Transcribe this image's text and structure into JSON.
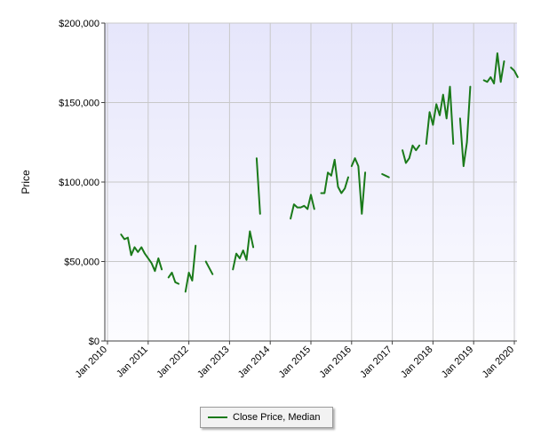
{
  "chart_data": {
    "type": "line",
    "ylabel": "Price",
    "xlabel": "",
    "ylim": [
      0,
      200000
    ],
    "xlim": [
      "2010-01",
      "2020-01"
    ],
    "y_ticks": [
      "$0",
      "$50,000",
      "$100,000",
      "$150,000",
      "$200,000"
    ],
    "y_tick_values": [
      0,
      50000,
      100000,
      150000,
      200000
    ],
    "x_ticks": [
      "Jan 2010",
      "Jan 2011",
      "Jan 2012",
      "Jan 2013",
      "Jan 2014",
      "Jan 2015",
      "Jan 2016",
      "Jan 2017",
      "Jan 2018",
      "Jan 2019",
      "Jan 2020"
    ],
    "x_tick_values": [
      "2010-01",
      "2011-01",
      "2012-01",
      "2013-01",
      "2014-01",
      "2015-01",
      "2016-01",
      "2017-01",
      "2018-01",
      "2019-01",
      "2020-01"
    ],
    "grid": true,
    "legend_position": "bottom",
    "series": [
      {
        "name": "Close Price, Median",
        "color": "#1a7a1a",
        "segments": [
          [
            [
              "2010-05",
              67000
            ],
            [
              "2010-06",
              64000
            ],
            [
              "2010-07",
              65000
            ],
            [
              "2010-08",
              54000
            ],
            [
              "2010-09",
              59000
            ],
            [
              "2010-10",
              56000
            ],
            [
              "2010-11",
              59000
            ],
            [
              "2010-12",
              55000
            ],
            [
              "2011-01",
              52000
            ],
            [
              "2011-02",
              49000
            ],
            [
              "2011-03",
              44000
            ],
            [
              "2011-04",
              52000
            ],
            [
              "2011-05",
              45000
            ]
          ],
          [
            [
              "2011-07",
              40000
            ],
            [
              "2011-08",
              43000
            ],
            [
              "2011-09",
              37000
            ],
            [
              "2011-10",
              36000
            ]
          ],
          [
            [
              "2011-12",
              31000
            ],
            [
              "2012-01",
              43000
            ],
            [
              "2012-02",
              38000
            ],
            [
              "2012-03",
              60000
            ]
          ],
          [
            [
              "2012-06",
              50000
            ],
            [
              "2012-07",
              46000
            ],
            [
              "2012-08",
              42000
            ]
          ],
          [
            [
              "2013-02",
              45000
            ],
            [
              "2013-03",
              55000
            ],
            [
              "2013-04",
              52000
            ],
            [
              "2013-05",
              57000
            ],
            [
              "2013-06",
              51000
            ],
            [
              "2013-07",
              69000
            ],
            [
              "2013-08",
              59000
            ]
          ],
          [
            [
              "2013-09",
              115000
            ],
            [
              "2013-10",
              80000
            ]
          ],
          [
            [
              "2014-07",
              77000
            ],
            [
              "2014-08",
              86000
            ],
            [
              "2014-09",
              84000
            ],
            [
              "2014-10",
              84000
            ],
            [
              "2014-11",
              85000
            ],
            [
              "2014-12",
              83000
            ],
            [
              "2015-01",
              92000
            ],
            [
              "2015-02",
              83000
            ]
          ],
          [
            [
              "2015-04",
              93000
            ],
            [
              "2015-05",
              93000
            ],
            [
              "2015-06",
              106000
            ],
            [
              "2015-07",
              104000
            ],
            [
              "2015-08",
              114000
            ],
            [
              "2015-09",
              97000
            ],
            [
              "2015-10",
              93000
            ],
            [
              "2015-11",
              96000
            ],
            [
              "2015-12",
              103000
            ]
          ],
          [
            [
              "2016-01",
              110000
            ],
            [
              "2016-02",
              115000
            ],
            [
              "2016-03",
              110000
            ],
            [
              "2016-04",
              80000
            ],
            [
              "2016-05",
              106000
            ]
          ],
          [
            [
              "2016-10",
              105000
            ],
            [
              "2016-11",
              104000
            ],
            [
              "2016-12",
              103000
            ]
          ],
          [
            [
              "2017-04",
              120000
            ],
            [
              "2017-05",
              112000
            ],
            [
              "2017-06",
              115000
            ],
            [
              "2017-07",
              123000
            ],
            [
              "2017-08",
              120000
            ],
            [
              "2017-09",
              123000
            ]
          ],
          [
            [
              "2017-11",
              124000
            ],
            [
              "2017-12",
              144000
            ],
            [
              "2018-01",
              136000
            ],
            [
              "2018-02",
              149000
            ],
            [
              "2018-03",
              142000
            ],
            [
              "2018-04",
              155000
            ],
            [
              "2018-05",
              140000
            ],
            [
              "2018-06",
              160000
            ],
            [
              "2018-07",
              124000
            ]
          ],
          [
            [
              "2018-09",
              140000
            ],
            [
              "2018-10",
              110000
            ],
            [
              "2018-11",
              125000
            ],
            [
              "2018-12",
              160000
            ]
          ],
          [
            [
              "2019-04",
              164000
            ],
            [
              "2019-05",
              163000
            ],
            [
              "2019-06",
              166000
            ],
            [
              "2019-07",
              162000
            ],
            [
              "2019-08",
              181000
            ],
            [
              "2019-09",
              163000
            ],
            [
              "2019-10",
              176000
            ]
          ],
          [
            [
              "2019-12",
              172000
            ],
            [
              "2020-01",
              170000
            ],
            [
              "2020-02",
              166000
            ]
          ]
        ]
      }
    ]
  },
  "legend": {
    "label": "Close Price, Median"
  }
}
